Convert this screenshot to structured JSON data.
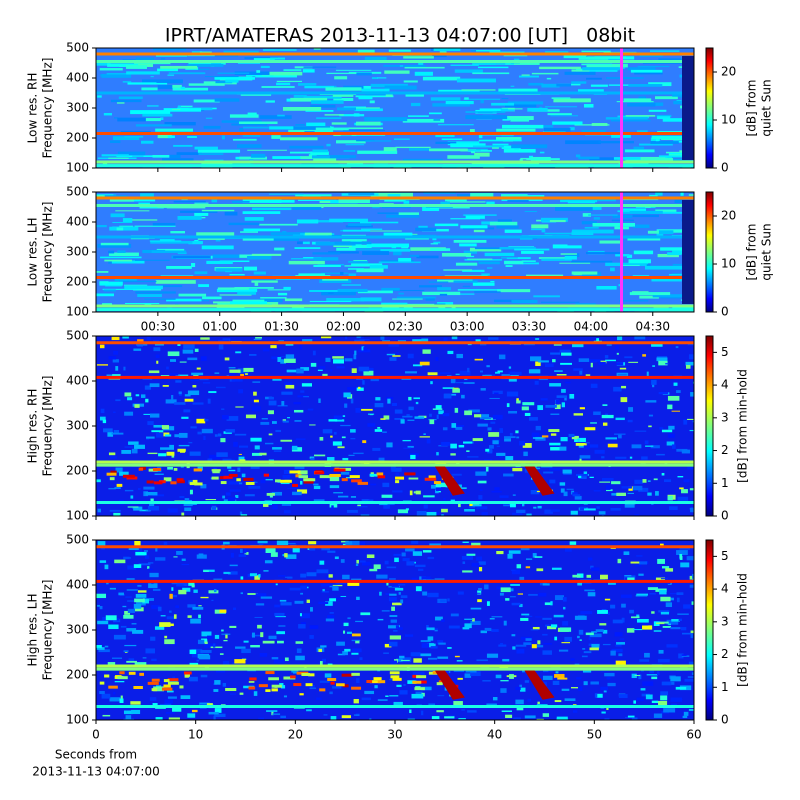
{
  "title": "IPRT/AMATERAS 2013-11-13 04:07:00 [UT]   08bit",
  "chart_data": [
    {
      "type": "spectrogram",
      "ylabel": [
        "Low res. RH",
        "Frequency [MHz]"
      ],
      "ylim": [
        100,
        500
      ],
      "yticks": [
        100,
        200,
        300,
        400,
        500
      ],
      "xlim": [
        0,
        290
      ],
      "colorbar_label": [
        "[dB] from",
        "quiet Sun"
      ],
      "clim": [
        0,
        25
      ],
      "cticks": [
        0,
        10,
        20
      ]
    },
    {
      "type": "spectrogram",
      "ylabel": [
        "Low res. LH",
        "Frequency [MHz]"
      ],
      "ylim": [
        100,
        500
      ],
      "yticks": [
        100,
        200,
        300,
        400,
        500
      ],
      "xlim": [
        0,
        290
      ],
      "xticks": [
        {
          "value": 30,
          "label": "00:30"
        },
        {
          "value": 60,
          "label": "01:00"
        },
        {
          "value": 90,
          "label": "01:30"
        },
        {
          "value": 120,
          "label": "02:00"
        },
        {
          "value": 150,
          "label": "02:30"
        },
        {
          "value": 180,
          "label": "03:00"
        },
        {
          "value": 210,
          "label": "03:30"
        },
        {
          "value": 240,
          "label": "04:00"
        },
        {
          "value": 270,
          "label": "04:30"
        }
      ],
      "colorbar_label": [
        "[dB] from",
        "quiet Sun"
      ],
      "clim": [
        0,
        25
      ],
      "cticks": [
        0,
        10,
        20
      ]
    },
    {
      "type": "spectrogram",
      "ylabel": [
        "High res. RH",
        "Frequency [MHz]"
      ],
      "ylim": [
        100,
        500
      ],
      "yticks": [
        100,
        200,
        300,
        400,
        500
      ],
      "xlim": [
        0,
        60
      ],
      "colorbar_label": [
        "[dB] from min-hold"
      ],
      "clim": [
        0,
        5.5
      ],
      "cticks": [
        0,
        1,
        2,
        3,
        4,
        5
      ]
    },
    {
      "type": "spectrogram",
      "ylabel": [
        "High res. LH",
        "Frequency [MHz]"
      ],
      "ylim": [
        100,
        500
      ],
      "yticks": [
        100,
        200,
        300,
        400,
        500
      ],
      "xlim": [
        0,
        60
      ],
      "xticks": [
        0,
        10,
        20,
        30,
        40,
        50,
        60
      ],
      "xlabel": [
        "Seconds from",
        "2013-11-13 04:07:00"
      ],
      "colorbar_label": [
        "[dB] from min-hold"
      ],
      "clim": [
        0,
        5.5
      ],
      "cticks": [
        0,
        1,
        2,
        3,
        4,
        5
      ]
    }
  ]
}
